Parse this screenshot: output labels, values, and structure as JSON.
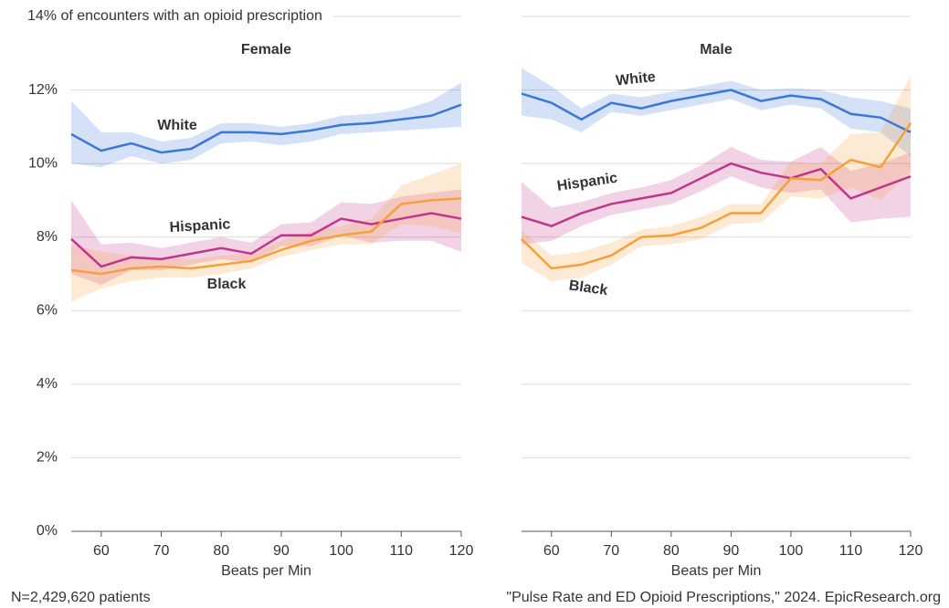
{
  "chart_data": [
    {
      "type": "line",
      "title": "Female",
      "xlabel": "Beats per Min",
      "x": [
        55,
        60,
        65,
        70,
        75,
        80,
        85,
        90,
        95,
        100,
        105,
        110,
        115,
        120
      ],
      "xlim": [
        55,
        120
      ],
      "xticks": [
        60,
        70,
        80,
        90,
        100,
        110,
        120
      ],
      "ylim": [
        0,
        14
      ],
      "yticks": [
        {
          "value": 0,
          "label": "0%"
        },
        {
          "value": 2,
          "label": "2%"
        },
        {
          "value": 4,
          "label": "4%"
        },
        {
          "value": 6,
          "label": "6%"
        },
        {
          "value": 8,
          "label": "8%"
        },
        {
          "value": 10,
          "label": "10%"
        },
        {
          "value": 12,
          "label": "12%"
        },
        {
          "value": 14,
          "label": "14% of encounters with an opioid prescription"
        }
      ],
      "grid": true,
      "series": [
        {
          "name": "White",
          "color": "#3b78d6",
          "values": [
            10.8,
            10.35,
            10.55,
            10.3,
            10.4,
            10.85,
            10.85,
            10.8,
            10.9,
            11.05,
            11.1,
            11.2,
            11.3,
            11.6
          ],
          "upper": [
            11.7,
            10.85,
            10.85,
            10.6,
            10.7,
            11.1,
            11.1,
            11.0,
            11.1,
            11.3,
            11.35,
            11.45,
            11.7,
            12.2
          ],
          "lower": [
            10.0,
            9.9,
            10.2,
            10.0,
            10.1,
            10.55,
            10.6,
            10.5,
            10.6,
            10.8,
            10.85,
            10.9,
            10.95,
            11.0
          ]
        },
        {
          "name": "Hispanic",
          "color": "#c2358f",
          "values": [
            7.95,
            7.2,
            7.45,
            7.4,
            7.55,
            7.7,
            7.55,
            8.05,
            8.05,
            8.5,
            8.35,
            8.5,
            8.65,
            8.5
          ],
          "upper": [
            9.0,
            7.8,
            7.85,
            7.7,
            7.85,
            8.0,
            7.85,
            8.35,
            8.4,
            8.95,
            8.9,
            9.1,
            9.2,
            9.3
          ],
          "lower": [
            7.0,
            6.7,
            7.1,
            7.1,
            7.25,
            7.4,
            7.3,
            7.75,
            7.75,
            8.05,
            7.85,
            7.9,
            7.9,
            7.6
          ]
        },
        {
          "name": "Black",
          "color": "#f5a03a",
          "values": [
            7.1,
            7.0,
            7.15,
            7.2,
            7.15,
            7.25,
            7.35,
            7.65,
            7.9,
            8.05,
            8.15,
            8.9,
            9.0,
            9.05
          ],
          "upper": [
            7.8,
            7.6,
            7.5,
            7.45,
            7.4,
            7.5,
            7.55,
            7.9,
            8.15,
            8.3,
            8.5,
            9.4,
            9.7,
            10.0
          ],
          "lower": [
            6.25,
            6.6,
            6.8,
            6.9,
            6.9,
            7.0,
            7.15,
            7.45,
            7.65,
            7.8,
            7.8,
            8.35,
            8.3,
            8.1
          ]
        }
      ]
    },
    {
      "type": "line",
      "title": "Male",
      "xlabel": "Beats per Min",
      "x": [
        55,
        60,
        65,
        70,
        75,
        80,
        85,
        90,
        95,
        100,
        105,
        110,
        115,
        120
      ],
      "xlim": [
        55,
        120
      ],
      "xticks": [
        60,
        70,
        80,
        90,
        100,
        110,
        120
      ],
      "ylim": [
        0,
        14
      ],
      "yticks": [
        0,
        2,
        4,
        6,
        8,
        10,
        12,
        14
      ],
      "grid": true,
      "series": [
        {
          "name": "White",
          "color": "#3b78d6",
          "values": [
            11.9,
            11.65,
            11.2,
            11.65,
            11.5,
            11.7,
            11.85,
            12.0,
            11.7,
            11.85,
            11.75,
            11.35,
            11.25,
            10.85
          ],
          "upper": [
            12.6,
            12.1,
            11.5,
            11.9,
            11.8,
            11.95,
            12.1,
            12.25,
            12.0,
            12.05,
            12.0,
            11.8,
            11.7,
            11.5
          ],
          "lower": [
            11.3,
            11.2,
            10.85,
            11.4,
            11.3,
            11.45,
            11.6,
            11.75,
            11.45,
            11.6,
            11.5,
            10.95,
            10.85,
            10.2
          ]
        },
        {
          "name": "Hispanic",
          "color": "#c2358f",
          "values": [
            8.55,
            8.3,
            8.65,
            8.9,
            9.05,
            9.2,
            9.6,
            10.0,
            9.75,
            9.6,
            9.85,
            9.05,
            9.35,
            9.65
          ],
          "upper": [
            9.5,
            8.8,
            8.95,
            9.2,
            9.35,
            9.55,
            9.95,
            10.45,
            10.1,
            10.05,
            10.45,
            9.8,
            10.0,
            10.3
          ],
          "lower": [
            7.8,
            7.9,
            8.3,
            8.6,
            8.75,
            8.9,
            9.25,
            9.65,
            9.35,
            9.2,
            9.3,
            8.4,
            8.5,
            8.55
          ]
        },
        {
          "name": "Black",
          "color": "#f5a03a",
          "values": [
            7.95,
            7.15,
            7.25,
            7.5,
            8.0,
            8.05,
            8.25,
            8.65,
            8.65,
            9.6,
            9.55,
            10.1,
            9.9,
            11.1
          ],
          "upper": [
            8.2,
            7.5,
            7.6,
            7.85,
            8.2,
            8.3,
            8.55,
            8.9,
            8.9,
            10.05,
            10.0,
            10.8,
            10.85,
            12.4
          ],
          "lower": [
            7.3,
            6.8,
            6.9,
            7.25,
            7.75,
            7.8,
            7.95,
            8.35,
            8.4,
            9.1,
            9.05,
            9.35,
            9.0,
            9.8
          ]
        }
      ]
    }
  ],
  "notes": {
    "sample": "N=2,429,620 patients",
    "source": "\"Pulse Rate and ED Opioid Prescriptions,\" 2024. EpicResearch.org"
  }
}
